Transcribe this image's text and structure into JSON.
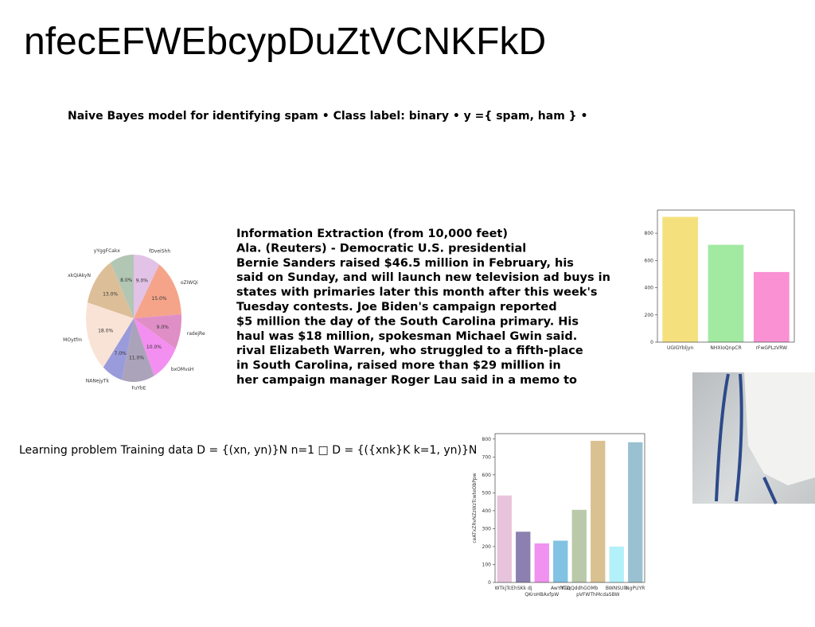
{
  "title": "nfecEFWEbcypDuZtVCNKFkD",
  "subtitle": "Naive Bayes model for identifying spam • Class label: binary • y ={ spam, ham } •",
  "text_block": {
    "lines": [
      "Information Extraction (from 10,000 feet)",
      "Ala. (Reuters) - Democratic U.S. presidential",
      "Bernie Sanders raised $46.5 million in February, his",
      "said on Sunday, and will launch new television ad buys in",
      "states with primaries later this month after this week's",
      "Tuesday contests. Joe Biden's campaign reported",
      "$5 million the day of the South Carolina primary. His",
      "haul was $18 million, spokesman Michael Gwin said.",
      "rival Elizabeth Warren, who struggled to a fifth-place",
      "in South Carolina, raised more than $29 million in",
      "her campaign manager Roger Lau said in a memo to"
    ]
  },
  "formula": "Learning problem Training data D = {(xn, yn)}N n=1 □ D = {({xnk}K k=1, yn)}N",
  "chart_data": [
    {
      "type": "pie",
      "categories": [
        "fDveiShh",
        "oZIWQi",
        "radejRe",
        "bxOMvsH",
        "FuYbE",
        "NANejyTk",
        "MOytfm",
        "xkQiAkyN",
        "yYggFCakx"
      ],
      "values": [
        9,
        15,
        9,
        10,
        11,
        7,
        18,
        13,
        8
      ],
      "value_labels": [
        "9.0%",
        "15.0%",
        "9.0%",
        "10.0%",
        "11.0%",
        "7.0%",
        "18.0%",
        "13.0%",
        "8.0%"
      ],
      "colors": [
        "#e2c2e6",
        "#f5a48a",
        "#e08fc6",
        "#f38ff0",
        "#aba3ba",
        "#9a9bdb",
        "#f9e3d6",
        "#dcbf99",
        "#b2c6b4"
      ]
    },
    {
      "type": "bar",
      "categories": [
        "UGIGYbljyn",
        "NHXIoQnpCR",
        "rFwGPLzVRW"
      ],
      "values": [
        920,
        715,
        515
      ],
      "colors": [
        "#f5e07e",
        "#a2e9a2",
        "#f991d2"
      ],
      "ylim": [
        0,
        970
      ],
      "yticks": [
        0,
        200,
        400,
        600,
        800
      ]
    },
    {
      "type": "bar",
      "ylabel": "ceATxZRvNZzWzTcwteObPpw",
      "categories": [
        "WTkjTcE",
        "hSKk dj",
        "QKroHBAxfpW",
        "AwYYTD",
        "iKuqQddhGOMb",
        "pVFWThMcdaSBW",
        "BWNSUlk",
        "NgPUYR"
      ],
      "values": [
        485,
        283,
        218,
        233,
        405,
        790,
        200,
        782
      ],
      "colors": [
        "#e8c4dc",
        "#8c80b0",
        "#f191f0",
        "#82c2e2",
        "#b9c9a9",
        "#d9c192",
        "#b2f1f9",
        "#99c1d1"
      ],
      "ylim": [
        0,
        830
      ],
      "yticks": [
        0,
        100,
        200,
        300,
        400,
        500,
        600,
        700,
        800
      ]
    }
  ]
}
